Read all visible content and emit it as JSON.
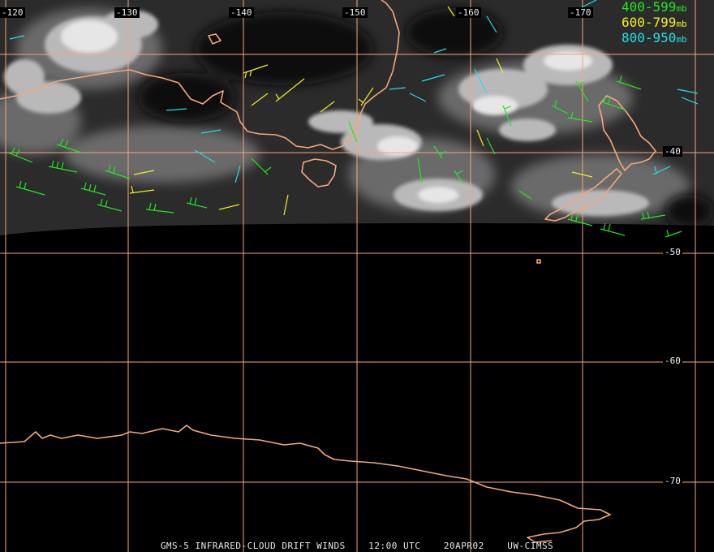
{
  "map": {
    "lon_labels": [
      "-120",
      "-130",
      "-140",
      "-150",
      "-160",
      "-170"
    ],
    "lat_labels": [
      "-40",
      "-50",
      "-60",
      "-70"
    ],
    "grid_color": "#f4a77a",
    "coast_color": "#f4a77a",
    "layers": [
      "infrared-cloud-imagery",
      "cloud-drift-wind-barbs",
      "lat-lon-grid",
      "coastlines"
    ]
  },
  "legend": [
    {
      "range": "400-599",
      "unit": "mb",
      "color": "#22e822"
    },
    {
      "range": "600-799",
      "unit": "mb",
      "color": "#f0f020"
    },
    {
      "range": "800-950",
      "unit": "mb",
      "color": "#22e0e8"
    }
  ],
  "footer": {
    "title": "GMS-5 INFRARED-CLOUD DRIFT WINDS",
    "time": "12:00 UTC",
    "date": "20APR02",
    "source": "UW-CIMSS"
  }
}
